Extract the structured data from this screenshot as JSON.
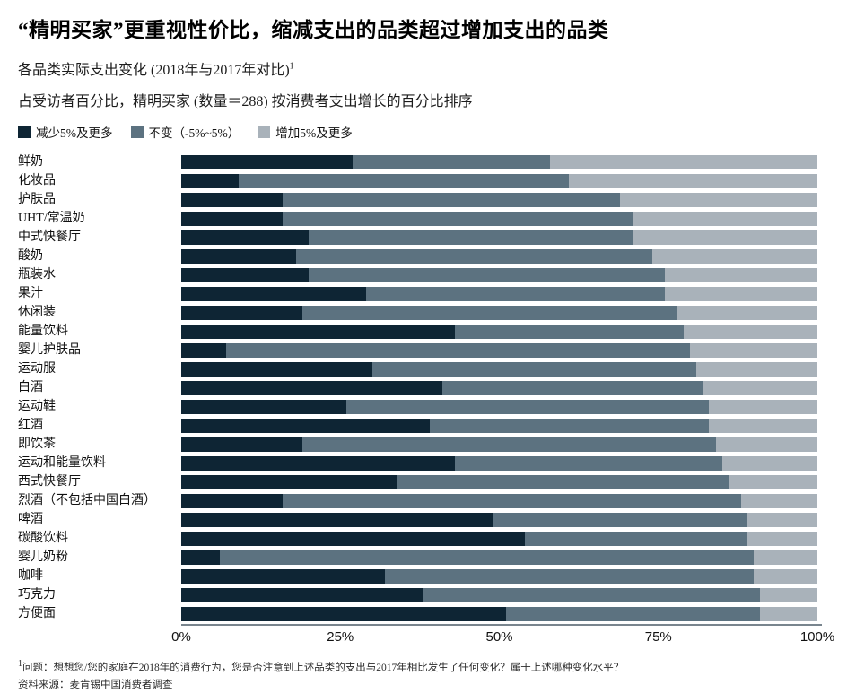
{
  "title": "“精明买家”更重视性价比，缩减支出的品类超过增加支出的品类",
  "subtitle_line1": "各品类实际支出变化 (2018年与2017年对比)",
  "subtitle_line1_sup": "1",
  "subtitle_line2": "占受访者百分比，精明买家 (数量＝288) 按消费者支出增长的百分比排序",
  "colors": {
    "decrease": "#0e2534",
    "no_change": "#5c7280",
    "increase": "#a9b2ba",
    "axis_line": "#79858e",
    "background": "#ffffff"
  },
  "legend": {
    "items": [
      {
        "label": "减少5%及更多",
        "color": "#0e2534"
      },
      {
        "label": "不变（-5%~5%）",
        "color": "#5c7280"
      },
      {
        "label": "增加5%及更多",
        "color": "#a9b2ba"
      }
    ]
  },
  "chart_data": {
    "type": "bar",
    "stacked": true,
    "orientation": "horizontal",
    "xlim": [
      0,
      100
    ],
    "x_ticks": [
      "0%",
      "25%",
      "50%",
      "75%",
      "100%"
    ],
    "x_tick_values": [
      0,
      25,
      50,
      75,
      100
    ],
    "legend_position": "top",
    "grid": false,
    "categories": [
      "鲜奶",
      "化妆品",
      "护肤品",
      "UHT/常温奶",
      "中式快餐厅",
      "酸奶",
      "瓶装水",
      "果汁",
      "休闲装",
      "能量饮料",
      "婴儿护肤品",
      "运动服",
      "白酒",
      "运动鞋",
      "红酒",
      "即饮茶",
      "运动和能量饮料",
      "西式快餐厅",
      "烈酒（不包括中国白酒）",
      "啤酒",
      "碳酸饮料",
      "婴儿奶粉",
      "咖啡",
      "巧克力",
      "方便面"
    ],
    "series": [
      {
        "name": "减少5%及更多",
        "color": "#0e2534",
        "values": [
          27,
          9,
          16,
          16,
          20,
          18,
          20,
          29,
          19,
          43,
          7,
          30,
          41,
          26,
          39,
          19,
          43,
          34,
          16,
          49,
          54,
          6,
          32,
          38,
          51
        ]
      },
      {
        "name": "不变（-5%~5%）",
        "color": "#5c7280",
        "values": [
          31,
          52,
          53,
          55,
          51,
          56,
          56,
          47,
          59,
          36,
          73,
          51,
          41,
          57,
          44,
          65,
          42,
          52,
          72,
          40,
          35,
          84,
          58,
          53,
          40
        ]
      },
      {
        "name": "增加5%及更多",
        "color": "#a9b2ba",
        "values": [
          42,
          39,
          31,
          29,
          29,
          26,
          24,
          24,
          22,
          21,
          20,
          19,
          18,
          17,
          17,
          16,
          15,
          14,
          12,
          11,
          11,
          10,
          10,
          9,
          9
        ]
      }
    ]
  },
  "footnote": {
    "sup": "1",
    "text": "问题：想想您/您的家庭在2018年的消费行为，您是否注意到上述品类的支出与2017年相比发生了任何变化？属于上述哪种变化水平？"
  },
  "source": "资料来源：麦肯锡中国消费者调查"
}
